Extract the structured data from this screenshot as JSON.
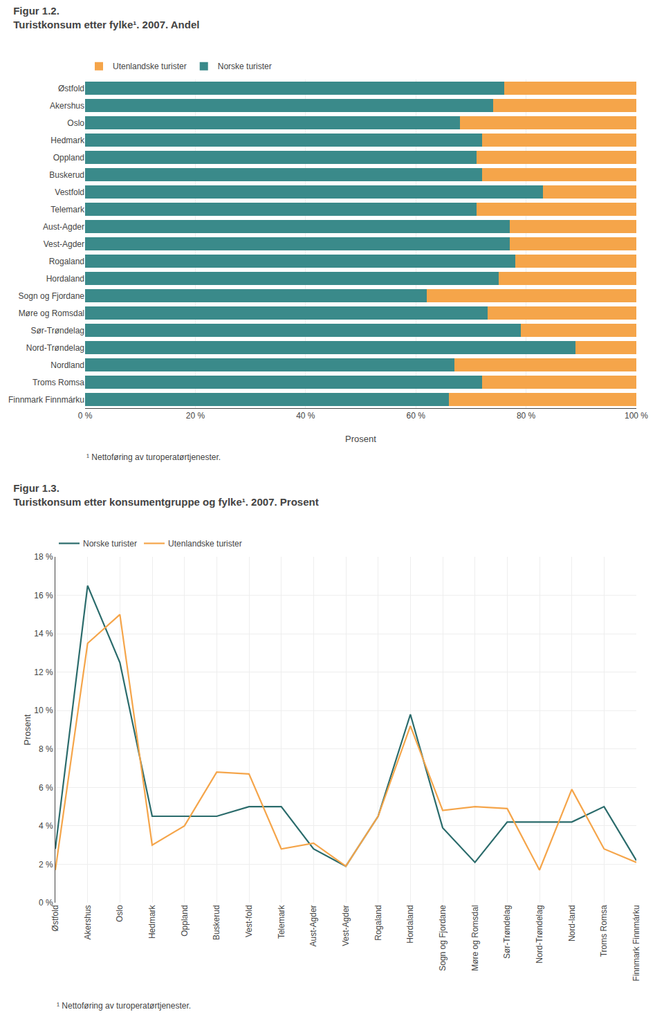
{
  "chart_data": [
    {
      "type": "bar",
      "title": "Figur 1.2.",
      "subtitle": "Turistkonsum etter fylke¹. 2007. Andel",
      "orientation": "horizontal",
      "stacked": true,
      "categories": [
        "Østfold",
        "Akershus",
        "Oslo",
        "Hedmark",
        "Oppland",
        "Buskerud",
        "Vestfold",
        "Telemark",
        "Aust-Agder",
        "Vest-Agder",
        "Rogaland",
        "Hordaland",
        "Sogn og Fjordane",
        "Møre og Romsdal",
        "Sør-Trøndelag",
        "Nord-Trøndelag",
        "Nordland",
        "Troms Romsa",
        "Finnmark Finnmárku"
      ],
      "series": [
        {
          "name": "Norske turister",
          "color": "#3a8a8a",
          "values": [
            76,
            74,
            68,
            72,
            71,
            72,
            83,
            71,
            77,
            77,
            78,
            75,
            62,
            73,
            79,
            89,
            67,
            72,
            66
          ]
        },
        {
          "name": "Utenlandske turister",
          "color": "#f5a54a",
          "values": [
            24,
            26,
            32,
            28,
            29,
            28,
            17,
            29,
            23,
            23,
            22,
            25,
            38,
            27,
            21,
            11,
            33,
            28,
            34
          ]
        }
      ],
      "x_label": "Prosent",
      "xlim": [
        0,
        100
      ],
      "xticks": [
        {
          "value": 0,
          "label": "0 %"
        },
        {
          "value": 20,
          "label": "20 %"
        },
        {
          "value": 40,
          "label": "40 %"
        },
        {
          "value": 60,
          "label": "60 %"
        },
        {
          "value": 80,
          "label": "80 %"
        },
        {
          "value": 100,
          "label": "100 %"
        }
      ],
      "grid": true,
      "legend": "top",
      "annotations": [
        "¹ Nettoføring av turoperatørtjenester."
      ]
    },
    {
      "type": "line",
      "title": "Figur 1.3.",
      "subtitle": "Turistkonsum etter konsumentgruppe og fylke¹. 2007. Prosent",
      "categories": [
        "Østfold",
        "Akershus",
        "Oslo",
        "Hedmark",
        "Oppland",
        "Buskerud",
        "Vest-fold",
        "Telemark",
        "Aust-Agder",
        "Vest-Agder",
        "Rogaland",
        "Hordaland",
        "Sogn og Fjordane",
        "Møre og Romsdal",
        "Sør-Trøndelag",
        "Nord-Trøndelag",
        "Nord-land",
        "Troms Romsa",
        "Finnmark Finnmárku"
      ],
      "series": [
        {
          "name": "Norske turister",
          "color": "#2a6b6b",
          "values": [
            2.8,
            16.5,
            12.5,
            4.5,
            4.5,
            4.5,
            5.0,
            5.0,
            2.8,
            1.9,
            4.5,
            9.8,
            3.9,
            2.1,
            4.2,
            4.2,
            4.2,
            5.0,
            2.2
          ]
        },
        {
          "name": "Utenlandske turister",
          "color": "#f5a54a",
          "values": [
            1.7,
            13.5,
            15.0,
            3.0,
            4.0,
            6.8,
            6.7,
            2.8,
            3.1,
            1.9,
            4.5,
            9.2,
            4.8,
            5.0,
            4.9,
            1.7,
            5.9,
            2.8,
            2.1
          ]
        }
      ],
      "y_label": "Prosent",
      "ylim": [
        0,
        18
      ],
      "yticks": [
        {
          "value": 0,
          "label": "0 %"
        },
        {
          "value": 2,
          "label": "2 %"
        },
        {
          "value": 4,
          "label": "4 %"
        },
        {
          "value": 6,
          "label": "6 %"
        },
        {
          "value": 8,
          "label": "8 %"
        },
        {
          "value": 10,
          "label": "10 %"
        },
        {
          "value": 12,
          "label": "12 %"
        },
        {
          "value": 14,
          "label": "14 %"
        },
        {
          "value": 16,
          "label": "16 %"
        },
        {
          "value": 18,
          "label": "18 %"
        }
      ],
      "grid": true,
      "legend": "top",
      "annotations": [
        "¹ Nettoføring av turoperatørtjenester."
      ]
    }
  ]
}
